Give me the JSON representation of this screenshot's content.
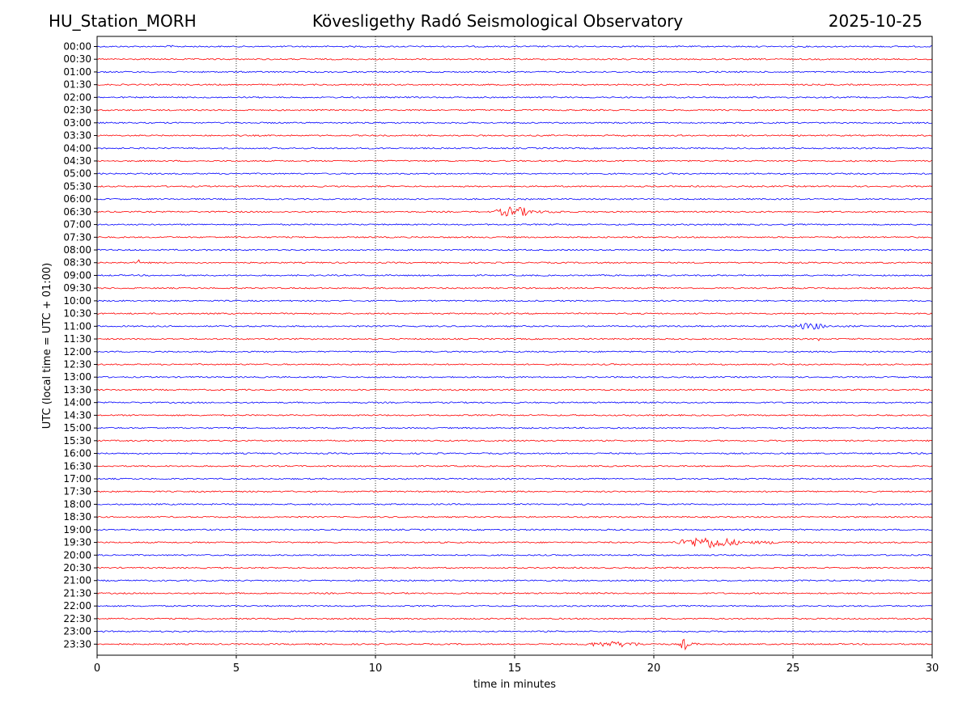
{
  "header": {
    "station": "HU_Station_MORH",
    "observatory": "Kövesligethy Radó Seismological Observatory",
    "date": "2025-10-25"
  },
  "chart_data": {
    "type": "line",
    "title": "Kövesligethy Radó Seismological Observatory",
    "xlabel": "time in minutes",
    "ylabel": "UTC (local time = UTC + 01:00)",
    "xlim": [
      0,
      30
    ],
    "x_ticks": [
      0,
      5,
      10,
      15,
      20,
      25,
      30
    ],
    "x_tick_labels": [
      "0",
      "5",
      "10",
      "15",
      "20",
      "25",
      "30"
    ],
    "grid": "vertical dotted at major x ticks",
    "row_labels": [
      "00:00",
      "00:30",
      "01:00",
      "01:30",
      "02:00",
      "02:30",
      "03:00",
      "03:30",
      "04:00",
      "04:30",
      "05:00",
      "05:30",
      "06:00",
      "06:30",
      "07:00",
      "07:30",
      "08:00",
      "08:30",
      "09:00",
      "09:30",
      "10:00",
      "10:30",
      "11:00",
      "11:30",
      "12:00",
      "12:30",
      "13:00",
      "13:30",
      "14:00",
      "14:30",
      "15:00",
      "15:30",
      "16:00",
      "16:30",
      "17:00",
      "17:30",
      "18:00",
      "18:30",
      "19:00",
      "19:30",
      "20:00",
      "20:30",
      "21:00",
      "21:30",
      "22:00",
      "22:30",
      "23:00",
      "23:30"
    ],
    "row_colors": [
      "#0000ff",
      "#ff0000"
    ],
    "events": [
      {
        "row": "00:00",
        "start_min": 2.4,
        "end_min": 3.2,
        "amplitude": 0.25
      },
      {
        "row": "01:00",
        "start_min": 21.5,
        "end_min": 24.0,
        "amplitude": 0.15
      },
      {
        "row": "02:00",
        "start_min": 12.5,
        "end_min": 15.0,
        "amplitude": 0.12
      },
      {
        "row": "06:30",
        "start_min": 14.2,
        "end_min": 17.0,
        "amplitude": 0.9
      },
      {
        "row": "08:30",
        "start_min": 1.4,
        "end_min": 1.7,
        "amplitude": 0.55
      },
      {
        "row": "11:00",
        "start_min": 24.9,
        "end_min": 27.5,
        "amplitude": 0.6
      },
      {
        "row": "11:30",
        "start_min": 25.85,
        "end_min": 26.05,
        "amplitude": 0.6
      },
      {
        "row": "19:30",
        "start_min": 20.7,
        "end_min": 25.2,
        "amplitude": 1.0
      },
      {
        "row": "23:30",
        "start_min": 17.3,
        "end_min": 21.8,
        "amplitude": 0.5
      },
      {
        "row": "23:30",
        "start_min": 20.9,
        "end_min": 21.6,
        "amplitude": 1.0
      }
    ]
  }
}
